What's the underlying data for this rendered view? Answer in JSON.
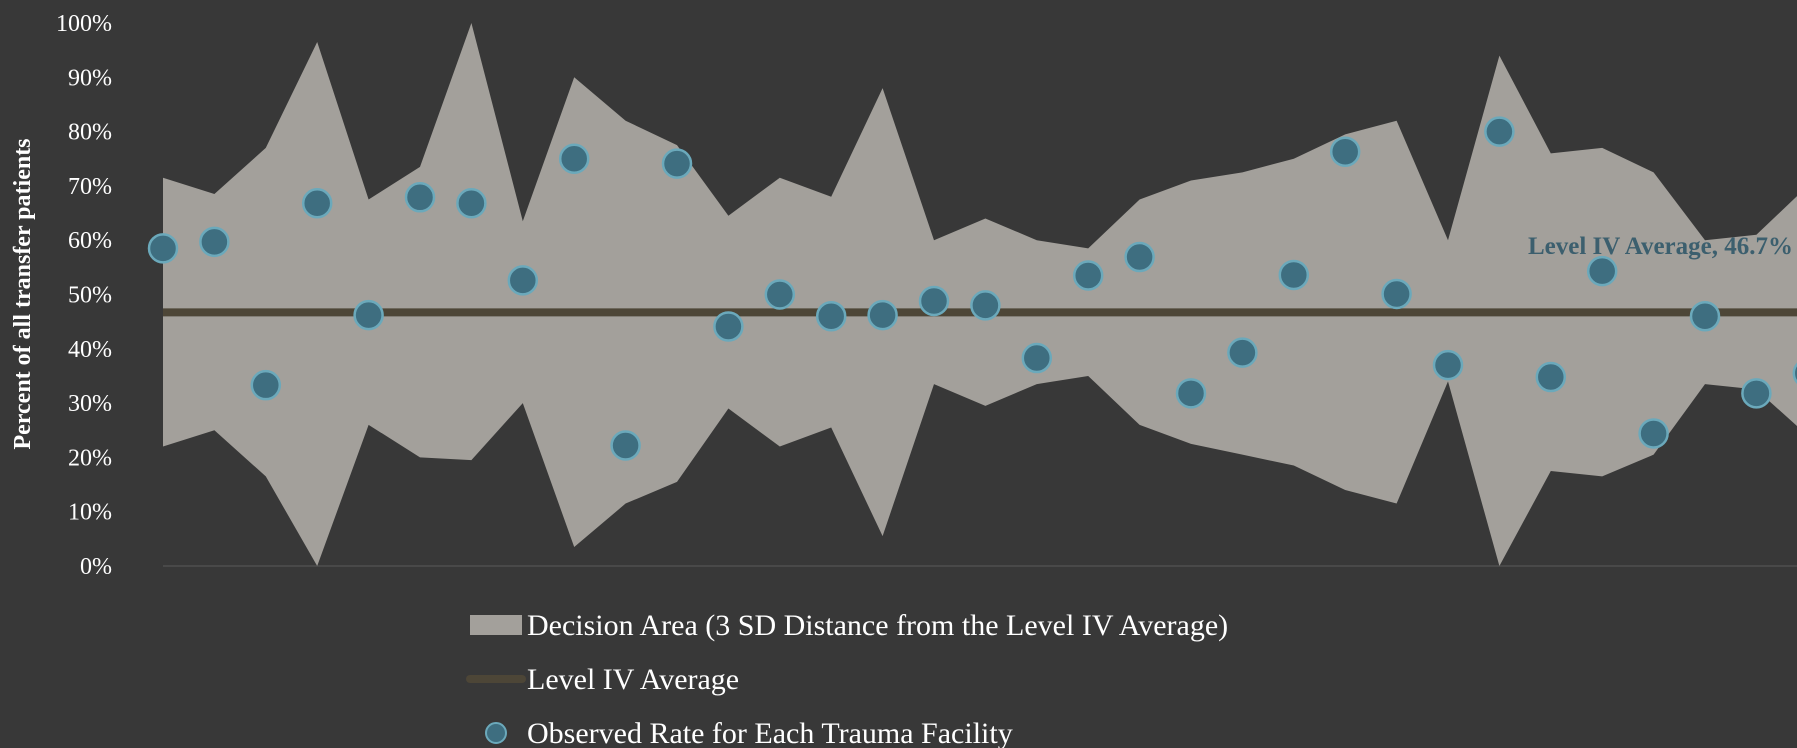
{
  "chart_data": {
    "type": "scatter",
    "ylabel": "Percent of all transfer patients",
    "xlabel": "",
    "ylim": [
      0,
      100
    ],
    "y_ticks": [
      "0%",
      "10%",
      "20%",
      "30%",
      "40%",
      "50%",
      "60%",
      "70%",
      "80%",
      "90%",
      "100%"
    ],
    "grid": false,
    "average": {
      "value": 46.7,
      "label": "Level IV Average, 46.7%"
    },
    "decision_area": {
      "upper": [
        71.5,
        68.5,
        77,
        96.5,
        67.5,
        73.5,
        100,
        63.5,
        90,
        82,
        77.5,
        64.5,
        71.5,
        68,
        88,
        60,
        64,
        60,
        58.5,
        67.5,
        71,
        72.5,
        75,
        79.5,
        82,
        60,
        94,
        76,
        77,
        72.5,
        60,
        61,
        70
      ],
      "lower": [
        22,
        25,
        16.5,
        0,
        26,
        20,
        19.5,
        30,
        3.5,
        11.5,
        15.5,
        29,
        22,
        25.5,
        5.5,
        33.5,
        29.5,
        33.5,
        35,
        26,
        22.5,
        20.5,
        18.5,
        14,
        11.5,
        34,
        0,
        17.5,
        16.5,
        20.5,
        33.5,
        32.5,
        24
      ]
    },
    "series": [
      {
        "name": "Observed Rate for Each Trauma Facility",
        "values": [
          58.5,
          59.7,
          33.3,
          66.8,
          46.2,
          67.9,
          66.8,
          52.6,
          75.0,
          22.2,
          74.1,
          44.1,
          50.0,
          46.0,
          46.2,
          48.8,
          48.0,
          38.3,
          53.5,
          56.9,
          31.8,
          39.3,
          53.6,
          76.3,
          50.1,
          37.0,
          80.0,
          34.8,
          54.3,
          24.4,
          46.0,
          31.8,
          35.5
        ]
      }
    ],
    "legend": {
      "placement": "bottom",
      "items": [
        {
          "label": "Decision Area (3 SD Distance from the Level IV Average)",
          "kind": "area"
        },
        {
          "label": "Level IV Average",
          "kind": "line"
        },
        {
          "label": "Observed Rate for Each Trauma Facility",
          "kind": "marker"
        }
      ]
    },
    "colors": {
      "background": "#383838",
      "area": "#a3a09b",
      "average_line": "#4d4637",
      "marker_fill": "#3e6e80",
      "marker_stroke": "#6ba9bb",
      "average_label": "#3c5f6e",
      "text": "#ffffff"
    }
  }
}
